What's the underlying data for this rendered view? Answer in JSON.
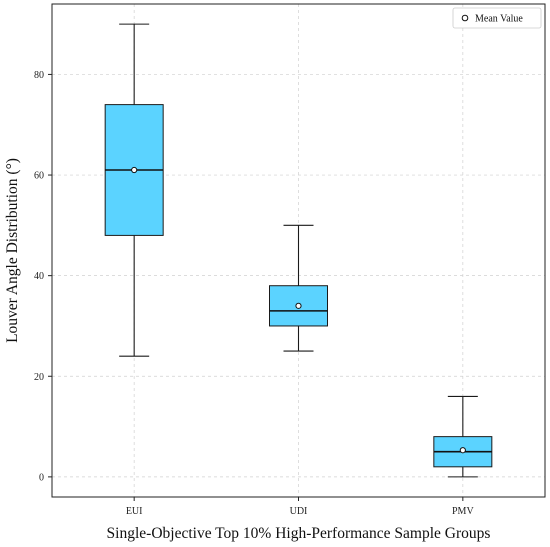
{
  "chart_data": {
    "type": "box",
    "title": "",
    "xlabel": "Single-Objective Top 10% High-Performance Sample Groups",
    "ylabel": "Louver Angle Distribution (°)",
    "categories": [
      "EUI",
      "UDI",
      "PMV"
    ],
    "boxes": [
      {
        "name": "EUI",
        "whisker_low": 24,
        "q1": 48,
        "median": 61,
        "q3": 74,
        "whisker_high": 90,
        "mean": 61
      },
      {
        "name": "UDI",
        "whisker_low": 25,
        "q1": 30,
        "median": 33,
        "q3": 38,
        "whisker_high": 50,
        "mean": 34
      },
      {
        "name": "PMV",
        "whisker_low": 0,
        "q1": 2,
        "median": 5,
        "q3": 8,
        "whisker_high": 16,
        "mean": 5.3
      }
    ],
    "yticks": [
      0,
      20,
      40,
      60,
      80
    ],
    "ylim": [
      -4,
      94
    ],
    "grid": true,
    "legend": {
      "label": "Mean Value",
      "placement": "top-right"
    },
    "colors": {
      "box_fill": "#5bd3ff",
      "box_edge": "#1a1a1a",
      "median": "#111111",
      "mean_marker_fill": "#ffffff",
      "grid": "#d0d0d0"
    }
  }
}
